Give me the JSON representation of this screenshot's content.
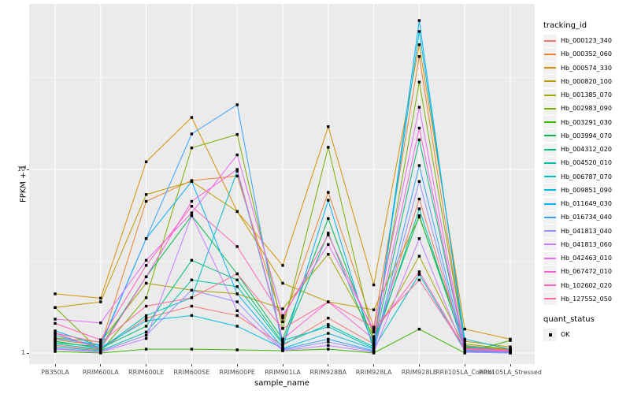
{
  "chart_data": {
    "type": "line",
    "title": "",
    "xlabel": "sample_name",
    "ylabel": "FPKM + 1",
    "y_scale": "log10",
    "ylim": [
      1,
      80
    ],
    "y_ticks": [
      {
        "label": "1",
        "value": 1
      },
      {
        "label": "10",
        "value": 10
      }
    ],
    "y_minor_ticks": [
      3.1623,
      31.623
    ],
    "grid": true,
    "panel_bg": "#EBEBEB",
    "grid_color": "#FFFFFF",
    "marker": "black-square",
    "legend_position": "right",
    "legend_titles": [
      "tracking_id",
      "quant_status"
    ],
    "quant_status": {
      "label": "OK"
    },
    "categories": [
      "PB350LA",
      "RRIM600LA",
      "RRIM600LE",
      "RRIM600SE",
      "RRIM600PE",
      "RRIM901LA",
      "RRIM928BA",
      "RRIM928LA",
      "RRIM928LE",
      "RRII105LA_Control",
      "RRII105LA_Stressed"
    ],
    "series": [
      {
        "name": "Hb_000123_340",
        "color": "#F8766D",
        "values": [
          1.1,
          1.04,
          1.55,
          1.8,
          1.6,
          1.1,
          1.55,
          1.12,
          6.9,
          1.06,
          1.02
        ]
      },
      {
        "name": "Hb_000352_060",
        "color": "#EA8331",
        "values": [
          1.18,
          1.1,
          6.7,
          8.7,
          9.2,
          1.48,
          7.5,
          1.38,
          41.2,
          1.1,
          1.04
        ]
      },
      {
        "name": "Hb_000574_330",
        "color": "#D89000",
        "values": [
          2.1,
          1.99,
          11.0,
          19.2,
          5.9,
          3.0,
          17.1,
          2.35,
          47.8,
          1.35,
          1.19
        ]
      },
      {
        "name": "Hb_000820_100",
        "color": "#C09B00",
        "values": [
          1.77,
          1.9,
          7.3,
          8.6,
          5.9,
          2.4,
          1.9,
          1.72,
          5.5,
          1.16,
          1.08
        ]
      },
      {
        "name": "Hb_001385_070",
        "color": "#A3A500",
        "values": [
          1.21,
          1.15,
          2.4,
          2.2,
          2.1,
          1.74,
          3.45,
          1.23,
          3.37,
          1.08,
          1.05
        ]
      },
      {
        "name": "Hb_002983_090",
        "color": "#7CAE00",
        "values": [
          1.77,
          1.02,
          2.0,
          13.1,
          15.5,
          1.36,
          13.2,
          1.19,
          29.9,
          1.12,
          1.05
        ]
      },
      {
        "name": "Hb_003291_030",
        "color": "#39B600",
        "values": [
          1.02,
          1.0,
          1.05,
          1.05,
          1.04,
          1.03,
          1.05,
          1.0,
          1.35,
          1.0,
          1.17
        ]
      },
      {
        "name": "Hb_003994_070",
        "color": "#00BB4E",
        "values": [
          1.14,
          1.08,
          2.6,
          5.6,
          2.7,
          1.19,
          5.4,
          1.15,
          5.6,
          1.07,
          1.03
        ]
      },
      {
        "name": "Hb_004312_020",
        "color": "#00BF7D",
        "values": [
          1.16,
          1.06,
          1.4,
          3.2,
          2.5,
          1.14,
          4.5,
          1.1,
          14.5,
          1.05,
          1.02
        ]
      },
      {
        "name": "Hb_004520_010",
        "color": "#00C1A3",
        "values": [
          1.08,
          1.03,
          1.3,
          2.5,
          2.3,
          1.12,
          1.43,
          1.08,
          6.1,
          1.04,
          1.02
        ]
      },
      {
        "name": "Hb_006787_070",
        "color": "#00BFC4",
        "values": [
          1.12,
          1.05,
          1.6,
          2.0,
          9.8,
          1.17,
          1.39,
          1.06,
          2.68,
          1.03,
          1.01
        ]
      },
      {
        "name": "Hb_009851_090",
        "color": "#00BAE0",
        "values": [
          1.25,
          1.07,
          1.5,
          1.6,
          1.4,
          1.06,
          1.28,
          1.05,
          56.4,
          1.19,
          1.05
        ]
      },
      {
        "name": "Hb_011649_030",
        "color": "#00B0F6",
        "values": [
          1.32,
          1.09,
          4.2,
          8.6,
          2.1,
          1.07,
          6.8,
          1.04,
          64.7,
          1.09,
          1.03
        ]
      },
      {
        "name": "Hb_016734_040",
        "color": "#35A2FF",
        "values": [
          1.2,
          1.11,
          4.2,
          15.6,
          22.5,
          1.05,
          1.19,
          1.03,
          10.5,
          1.02,
          1.01
        ]
      },
      {
        "name": "Hb_041813_040",
        "color": "#9590FF",
        "values": [
          1.06,
          1.02,
          1.25,
          2.2,
          1.9,
          1.04,
          1.15,
          1.02,
          8.6,
          1.01,
          1.0
        ]
      },
      {
        "name": "Hb_041813_060",
        "color": "#C77CFF",
        "values": [
          1.05,
          1.01,
          1.2,
          5.6,
          1.7,
          1.03,
          1.1,
          1.01,
          4.2,
          1.01,
          1.0
        ]
      },
      {
        "name": "Hb_042463_010",
        "color": "#E76BF3",
        "values": [
          1.53,
          1.46,
          3.2,
          5.8,
          12.0,
          1.6,
          3.9,
          1.34,
          21.8,
          1.05,
          1.03
        ]
      },
      {
        "name": "Hb_067472_010",
        "color": "#FA62DB",
        "values": [
          1.28,
          1.05,
          2.6,
          6.7,
          10.0,
          1.19,
          1.9,
          1.19,
          16.8,
          1.04,
          1.02
        ]
      },
      {
        "name": "Hb_102602_020",
        "color": "#FF62BC",
        "values": [
          1.45,
          1.18,
          3.0,
          6.3,
          3.8,
          1.55,
          4.4,
          1.3,
          2.77,
          1.05,
          1.03
        ]
      },
      {
        "name": "Hb_127552_050",
        "color": "#FF6A98",
        "values": [
          1.28,
          1.14,
          1.8,
          2.0,
          2.7,
          1.36,
          1.9,
          1.38,
          2.5,
          1.06,
          1.04
        ]
      }
    ]
  }
}
